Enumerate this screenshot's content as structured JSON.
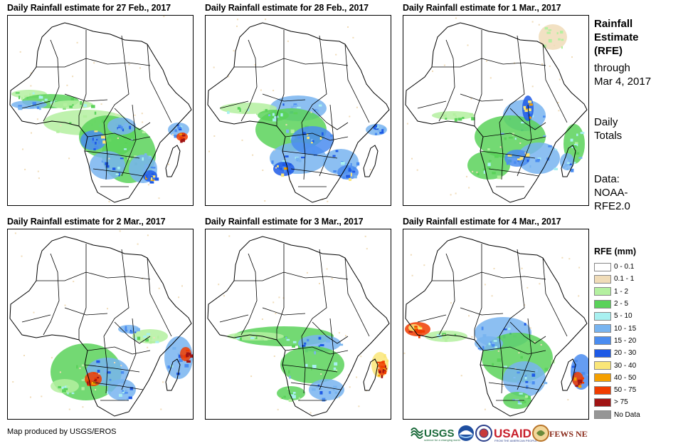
{
  "panels": [
    {
      "title": "Daily Rainfall estimate for 27 Feb., 2017"
    },
    {
      "title": "Daily Rainfall estimate for 28 Feb., 2017"
    },
    {
      "title": "Daily Rainfall estimate for 1 Mar., 2017"
    },
    {
      "title": "Daily Rainfall estimate for 2 Mar., 2017"
    },
    {
      "title": "Daily Rainfall estimate for 3 Mar., 2017"
    },
    {
      "title": "Daily Rainfall estimate for 4 Mar., 2017"
    }
  ],
  "side": {
    "title_lines": [
      "Rainfall",
      "Estimate",
      "(RFE)"
    ],
    "through_lines": [
      "through",
      "Mar 4, 2017"
    ],
    "totals_lines": [
      "Daily",
      "Totals"
    ],
    "data_lines": [
      "Data:",
      "NOAA-",
      "RFE2.0"
    ]
  },
  "legend": {
    "title": "RFE (mm)",
    "items": [
      {
        "label": "0 - 0.1",
        "color": "#ffffff"
      },
      {
        "label": "0.1 - 1",
        "color": "#f0dcb8"
      },
      {
        "label": "1 - 2",
        "color": "#b4f0a0"
      },
      {
        "label": "2 - 5",
        "color": "#5ad25a"
      },
      {
        "label": "5 - 10",
        "color": "#a8f0f0"
      },
      {
        "label": "10 - 15",
        "color": "#78b4f0"
      },
      {
        "label": "15 - 20",
        "color": "#4a8cf0"
      },
      {
        "label": "20 - 30",
        "color": "#1e5ae6"
      },
      {
        "label": "30 - 40",
        "color": "#fae678"
      },
      {
        "label": "40 - 50",
        "color": "#f5a000"
      },
      {
        "label": "50 - 75",
        "color": "#f03c00"
      },
      {
        "label": "> 75",
        "color": "#a01414"
      },
      {
        "label": "No Data",
        "color": "#969696"
      }
    ]
  },
  "credit": "Map produced by USGS/EROS",
  "logos": [
    {
      "name": "usgs-logo",
      "text": "USGS"
    },
    {
      "name": "noaa-logo",
      "text": ""
    },
    {
      "name": "usaid-seal",
      "text": ""
    },
    {
      "name": "usaid-logo",
      "text": "USAID"
    },
    {
      "name": "fewsnet-logo",
      "text": "FEWS NET"
    }
  ]
}
